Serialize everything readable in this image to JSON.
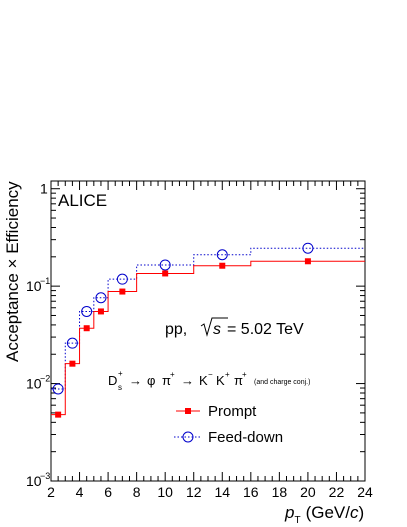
{
  "chart_data": {
    "type": "line",
    "title": "",
    "experiment": "ALICE",
    "xlabel": {
      "symbol": "p",
      "subscript": "T",
      "unit": "(GeV/",
      "unit_italic": "c",
      "unit_close": ")"
    },
    "ylabel": "Acceptance × Efficiency",
    "xlim": [
      2,
      24
    ],
    "ylim": [
      0.001,
      1.2
    ],
    "yscale": "log",
    "x_ticks": [
      2,
      4,
      6,
      8,
      10,
      12,
      14,
      16,
      18,
      20,
      22,
      24
    ],
    "x_tick_labels": [
      "2",
      "4",
      "6",
      "8",
      "10",
      "12",
      "14",
      "16",
      "18",
      "20",
      "22",
      "24"
    ],
    "y_ticks": [
      {
        "value": 0.001,
        "base": "10",
        "exp": "−3"
      },
      {
        "value": 0.01,
        "base": "10",
        "exp": "−2"
      },
      {
        "value": 0.1,
        "base": "10",
        "exp": "−1"
      },
      {
        "value": 1,
        "base": "1",
        "exp": ""
      }
    ],
    "annotations": {
      "system": "pp,",
      "energy_sqrt": "s",
      "energy_value": "= 5.02 TeV",
      "decay": {
        "parent": "D",
        "parent_sup": "+",
        "parent_sub": "s",
        "arrow1": "→",
        "phi": "φ",
        "pi1": "π",
        "pi1_sup": "+",
        "arrow2": "→",
        "k1": "K",
        "k1_sup": "−",
        "k2": "K",
        "k2_sup": "+",
        "pi2": "π",
        "pi2_sup": "+",
        "note": "(and charge conj.)"
      }
    },
    "legend": "bottom-center",
    "series": [
      {
        "name": "Prompt",
        "color": "#ff0000",
        "marker": "filled-square",
        "line_style": "solid",
        "bin_edges": [
          2,
          3,
          4,
          5,
          6,
          8,
          12,
          16,
          24
        ],
        "x": [
          2.5,
          3.5,
          4.5,
          5.5,
          7,
          10,
          14,
          20
        ],
        "values": [
          0.0048,
          0.016,
          0.037,
          0.055,
          0.088,
          0.135,
          0.162,
          0.18
        ]
      },
      {
        "name": "Feed-down",
        "color": "#0000cc",
        "marker": "open-circle",
        "line_style": "dotted",
        "bin_edges": [
          2,
          3,
          4,
          5,
          6,
          8,
          12,
          16,
          24
        ],
        "x": [
          2.5,
          3.5,
          4.5,
          5.5,
          7,
          10,
          14,
          20
        ],
        "values": [
          0.0088,
          0.026,
          0.055,
          0.076,
          0.118,
          0.165,
          0.21,
          0.245
        ]
      }
    ]
  }
}
